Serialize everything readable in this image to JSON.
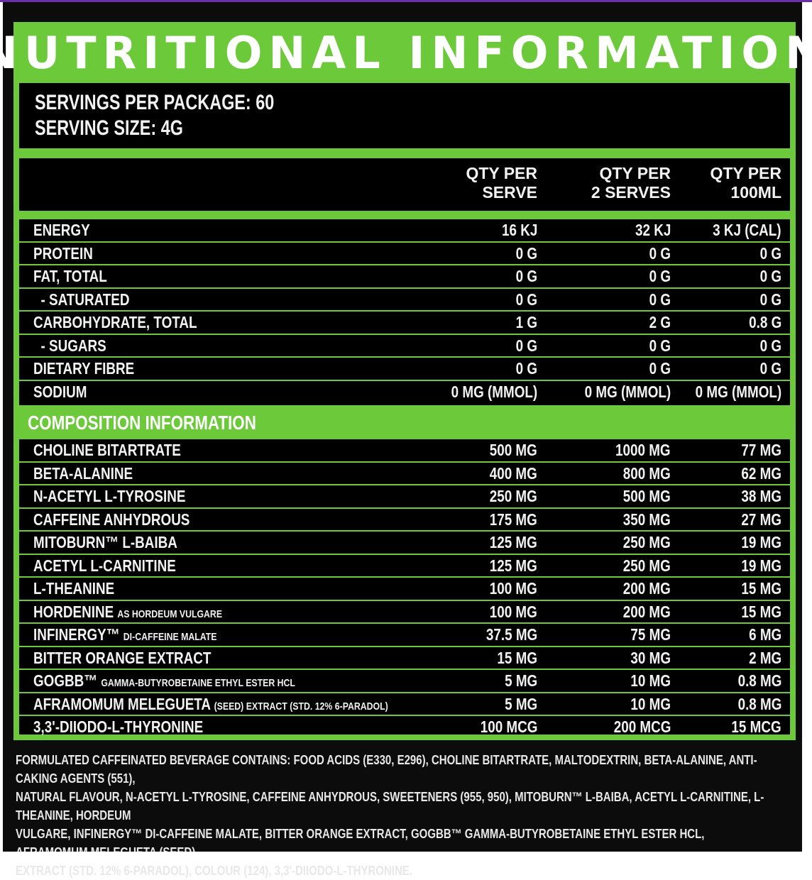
{
  "title": "NUTRITIONAL INFORMATION",
  "servings_per_package": "SERVINGS PER PACKAGE: 60",
  "serving_size": "SERVING SIZE: 4G",
  "headers": {
    "col1": [
      "QTY PER",
      "SERVE"
    ],
    "col2": [
      "QTY PER",
      "2 SERVES"
    ],
    "col3": [
      "QTY PER",
      "100ML"
    ]
  },
  "nutrition_rows": [
    {
      "name": "ENERGY",
      "sub": "",
      "serve": "16 KJ",
      "two": "32 KJ",
      "per100": "3 KJ (CAL)"
    },
    {
      "name": "PROTEIN",
      "sub": "",
      "serve": "0 G",
      "two": "0 G",
      "per100": "0 G"
    },
    {
      "name": "FAT, TOTAL",
      "sub": "",
      "serve": "0 G",
      "two": "0 G",
      "per100": "0 G"
    },
    {
      "name": "  - SATURATED",
      "sub": "",
      "serve": "0 G",
      "two": "0 G",
      "per100": "0 G"
    },
    {
      "name": "CARBOHYDRATE, TOTAL",
      "sub": "",
      "serve": "1 G",
      "two": "2 G",
      "per100": "0.8 G"
    },
    {
      "name": "  - SUGARS",
      "sub": "",
      "serve": "0 G",
      "two": "0 G",
      "per100": "0 G"
    },
    {
      "name": "DIETARY FIBRE",
      "sub": "",
      "serve": "0 G",
      "two": "0 G",
      "per100": "0 G"
    },
    {
      "name": "SODIUM",
      "sub": "",
      "serve": "0 MG (MMOL)",
      "two": "0 MG (MMOL)",
      "per100": "0 MG (MMOL)"
    }
  ],
  "composition_title": "COMPOSITION INFORMATION",
  "composition_rows": [
    {
      "name": "CHOLINE BITARTRATE",
      "sub": "",
      "serve": "500 MG",
      "two": "1000 MG",
      "per100": "77 MG"
    },
    {
      "name": "BETA-ALANINE",
      "sub": "",
      "serve": "400 MG",
      "two": "800 MG",
      "per100": "62 MG"
    },
    {
      "name": "N-ACETYL L-TYROSINE",
      "sub": "",
      "serve": "250 MG",
      "two": "500 MG",
      "per100": "38 MG"
    },
    {
      "name": "CAFFEINE ANHYDROUS",
      "sub": "",
      "serve": "175 MG",
      "two": "350 MG",
      "per100": "27 MG"
    },
    {
      "name": "MITOBURN™ L-BAIBA",
      "sub": "",
      "serve": "125 MG",
      "two": "250 MG",
      "per100": "19 MG"
    },
    {
      "name": "ACETYL L-CARNITINE",
      "sub": "",
      "serve": "125 MG",
      "two": "250 MG",
      "per100": "19 MG"
    },
    {
      "name": "L-THEANINE",
      "sub": "",
      "serve": "100 MG",
      "two": "200 MG",
      "per100": "15 MG"
    },
    {
      "name": "HORDENINE",
      "sub": "AS HORDEUM VULGARE",
      "serve": "100 MG",
      "two": "200 MG",
      "per100": "15 MG"
    },
    {
      "name": "INFINERGY™",
      "sub": "DI-CAFFEINE MALATE",
      "serve": "37.5 MG",
      "two": "75 MG",
      "per100": "6 MG"
    },
    {
      "name": "BITTER ORANGE EXTRACT",
      "sub": "",
      "serve": "15 MG",
      "two": "30 MG",
      "per100": "2 MG"
    },
    {
      "name": "GOGBB™",
      "sub": "GAMMA-BUTYROBETAINE ETHYL ESTER HCL",
      "serve": "5 MG",
      "two": "10 MG",
      "per100": "0.8 MG"
    },
    {
      "name": "AFRAMOMUM MELEGUETA",
      "sub": "(SEED) EXTRACT (STD. 12% 6-PARADOL)",
      "serve": "5 MG",
      "two": "10 MG",
      "per100": "0.8 MG"
    },
    {
      "name": "3,3'-DIIODO-L-THYRONINE",
      "sub": "",
      "serve": "100 MCG",
      "two": "200 MCG",
      "per100": "15 MCG"
    }
  ],
  "footer_lines": [
    "FORMULATED CAFFEINATED BEVERAGE CONTAINS: FOOD ACIDS (E330, E296), CHOLINE BITARTRATE, MALTODEXTRIN, BETA-ALANINE, ANTI-CAKING AGENTS (551),",
    "NATURAL FLAVOUR, N-ACETYL L-TYROSINE, CAFFEINE ANHYDROUS, SWEETENERS (955, 950), MITOBURN™ L-BAIBA, ACETYL L-CARNITINE, L-THEANINE, HORDEUM",
    "VULGARE, INFINERGY™ DI-CAFFEINE MALATE, BITTER ORANGE EXTRACT, GOGBB™ GAMMA-BUTYROBETAINE ETHYL ESTER HCL,  AFRAMOMUM MELEGUETA (SEED)",
    "EXTRACT (STD. 12% 6-PARADOL), COLOUR (124), 3,3'-DIIODO-L-THYRONINE."
  ],
  "colors": {
    "accent_green": "#6cc93a",
    "background": "#0c0c0c"
  }
}
